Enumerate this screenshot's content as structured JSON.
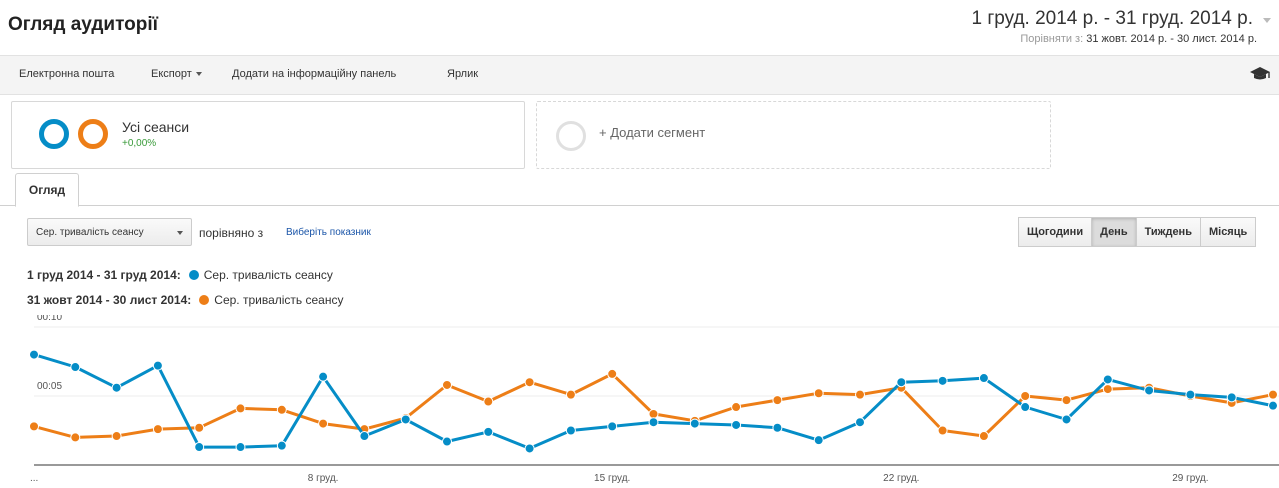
{
  "header": {
    "title": "Огляд аудиторії",
    "date_range": "1 груд. 2014 р. - 31 груд. 2014 р.",
    "compare_label": "Порівняти з:",
    "compare_range": "31 жовт. 2014 р. - 30 лист. 2014 р."
  },
  "toolbar": {
    "email": "Електронна пошта",
    "export": "Експорт",
    "add_dashboard": "Додати на інформаційну панель",
    "shortcut": "Ярлик",
    "help_icon": "graduation-cap-icon"
  },
  "segments": {
    "all_sessions": "Усі сеанси",
    "delta": "+0,00%",
    "add_segment": "+ Додати сегмент",
    "colors": {
      "primary": "#058dc7",
      "compare": "#ed7e17"
    }
  },
  "tabs": {
    "overview": "Огляд"
  },
  "controls": {
    "metric": "Сер. тривалість сеансу",
    "compared_with": "порівняно з",
    "choose_metric": "Виберіть показник",
    "granularity": [
      "Щогодини",
      "День",
      "Тиждень",
      "Місяць"
    ],
    "granularity_selected": "День"
  },
  "legend": [
    {
      "range": "1 груд 2014 - 31 груд 2014:",
      "metric": "Сер. тривалість сеансу",
      "color": "#058dc7"
    },
    {
      "range": "31 жовт 2014 - 30 лист 2014:",
      "metric": "Сер. тривалість сеансу",
      "color": "#ed7e17"
    }
  ],
  "chart_data": {
    "type": "line",
    "y_unit": "seconds",
    "y_ticks": [
      "00:10",
      "00:05"
    ],
    "y_tick_values": [
      10,
      5
    ],
    "ylim": [
      0,
      10
    ],
    "x_tick_labels": [
      "...",
      "8 груд.",
      "15 груд.",
      "22 груд.",
      "29 груд."
    ],
    "x_tick_days": [
      1,
      8,
      15,
      22,
      29
    ],
    "x_days": [
      1,
      2,
      3,
      4,
      5,
      6,
      7,
      8,
      9,
      10,
      11,
      12,
      13,
      14,
      15,
      16,
      17,
      18,
      19,
      20,
      21,
      22,
      23,
      24,
      25,
      26,
      27,
      28,
      29,
      30,
      31
    ],
    "grid": true,
    "series": [
      {
        "name": "1 груд 2014 - 31 груд 2014",
        "color": "#058dc7",
        "values": [
          8.0,
          7.1,
          5.6,
          7.2,
          1.3,
          1.3,
          1.4,
          6.4,
          2.1,
          3.3,
          1.7,
          2.4,
          1.2,
          2.5,
          2.8,
          3.1,
          3.0,
          2.9,
          2.7,
          1.8,
          3.1,
          6.0,
          6.1,
          6.3,
          4.2,
          3.3,
          6.2,
          5.4,
          5.1,
          4.9,
          4.3
        ]
      },
      {
        "name": "31 жовт 2014 - 30 лист 2014",
        "color": "#ed7e17",
        "values": [
          2.8,
          2.0,
          2.1,
          2.6,
          2.7,
          4.1,
          4.0,
          3.0,
          2.6,
          3.4,
          5.8,
          4.6,
          6.0,
          5.1,
          6.6,
          3.7,
          3.2,
          4.2,
          4.7,
          5.2,
          5.1,
          5.6,
          2.5,
          2.1,
          5.0,
          4.7,
          5.5,
          5.6,
          5.0,
          4.5,
          5.1
        ]
      }
    ]
  }
}
